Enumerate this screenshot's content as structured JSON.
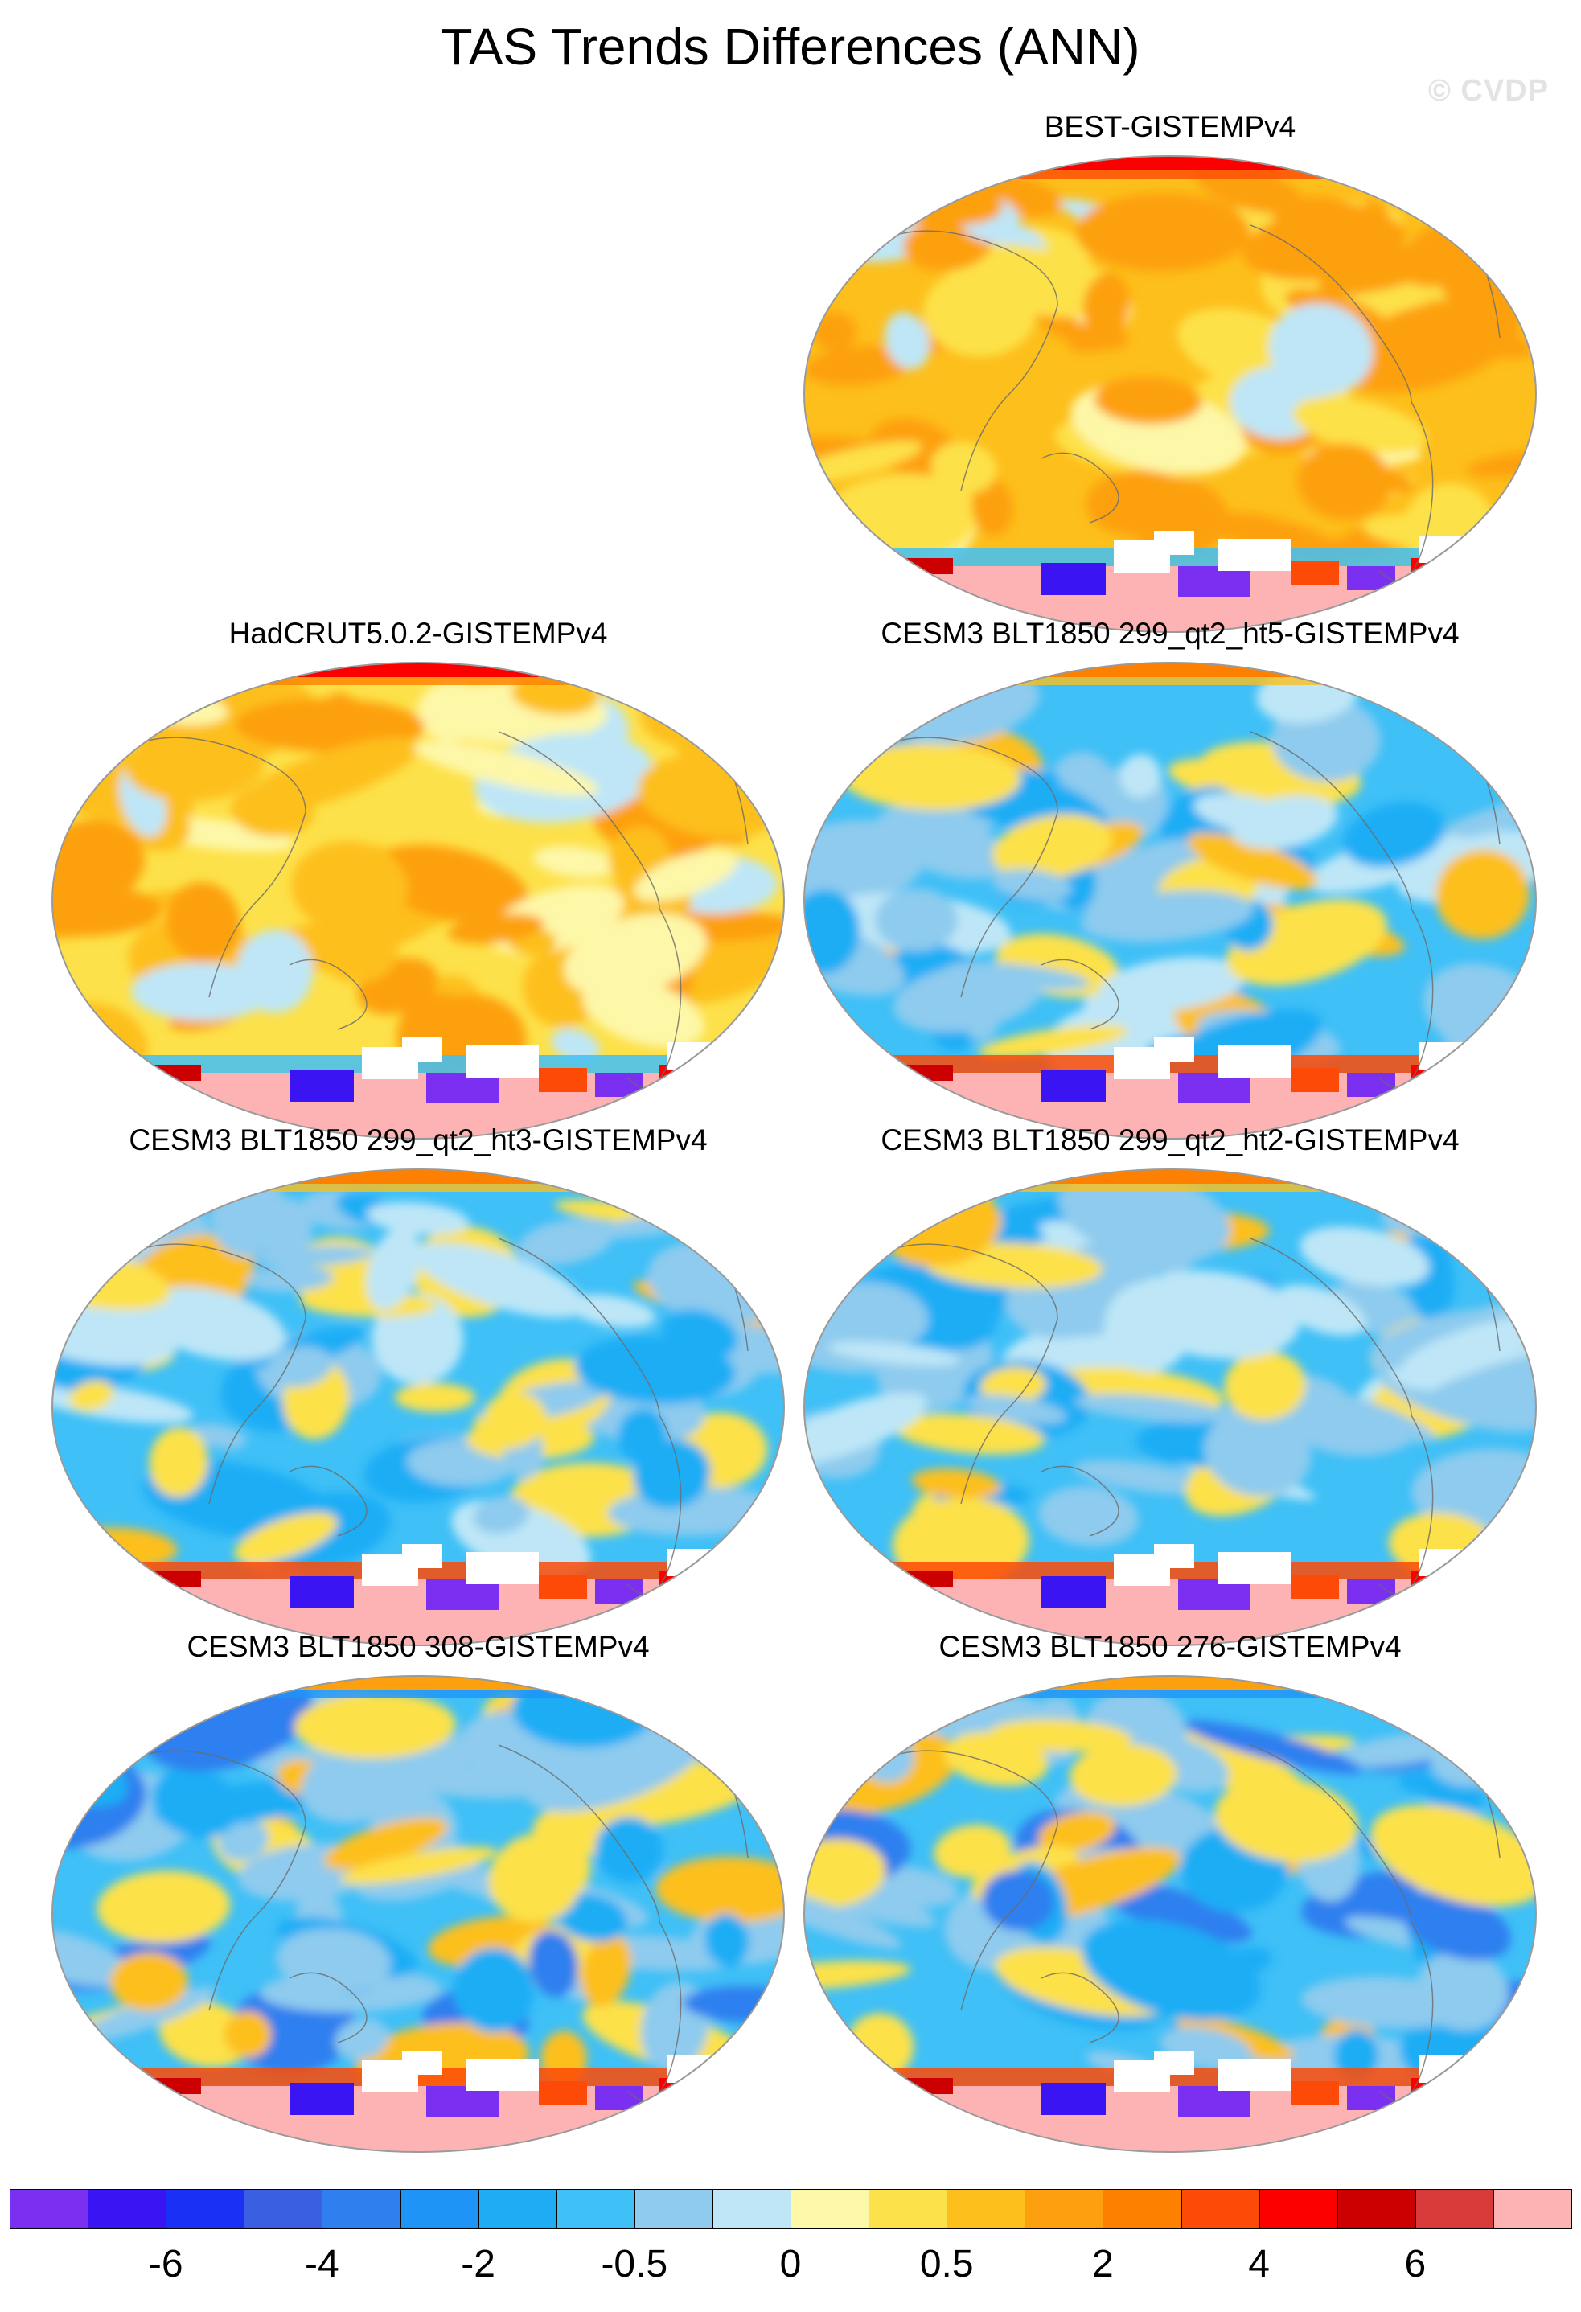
{
  "title": "TAS Trends Differences (ANN)",
  "watermark": "© CVDP",
  "panels": [
    {
      "label": "BEST-GISTEMPv4",
      "pattern": "warm-strong"
    },
    {
      "label": "HadCRUT5.0.2-GISTEMPv4",
      "pattern": "warm"
    },
    {
      "label": "CESM3 BLT1850 299_qt2_ht5-GISTEMPv4",
      "pattern": "cool"
    },
    {
      "label": "CESM3 BLT1850 299_qt2_ht3-GISTEMPv4",
      "pattern": "cool"
    },
    {
      "label": "CESM3 BLT1850 299_qt2_ht2-GISTEMPv4",
      "pattern": "cool"
    },
    {
      "label": "CESM3 BLT1850 308-GISTEMPv4",
      "pattern": "cool-south"
    },
    {
      "label": "CESM3 BLT1850 276-GISTEMPv4",
      "pattern": "cool-south"
    }
  ],
  "colorbar": {
    "colors": [
      "#7b2ff0",
      "#3a14f2",
      "#1a30f5",
      "#3a5fe0",
      "#2f7fef",
      "#1f94f7",
      "#1eadf5",
      "#3fc0f7",
      "#8ecbee",
      "#bee6f7",
      "#fdf7a8",
      "#fde14a",
      "#fdbf1c",
      "#fda010",
      "#fd8000",
      "#fd4a06",
      "#fc0000",
      "#cc0000",
      "#d83a3a",
      "#fdb3b3"
    ],
    "labels": [
      "-6",
      "-4",
      "-2",
      "-0.5",
      "0",
      "0.5",
      "2",
      "4",
      "6"
    ]
  }
}
